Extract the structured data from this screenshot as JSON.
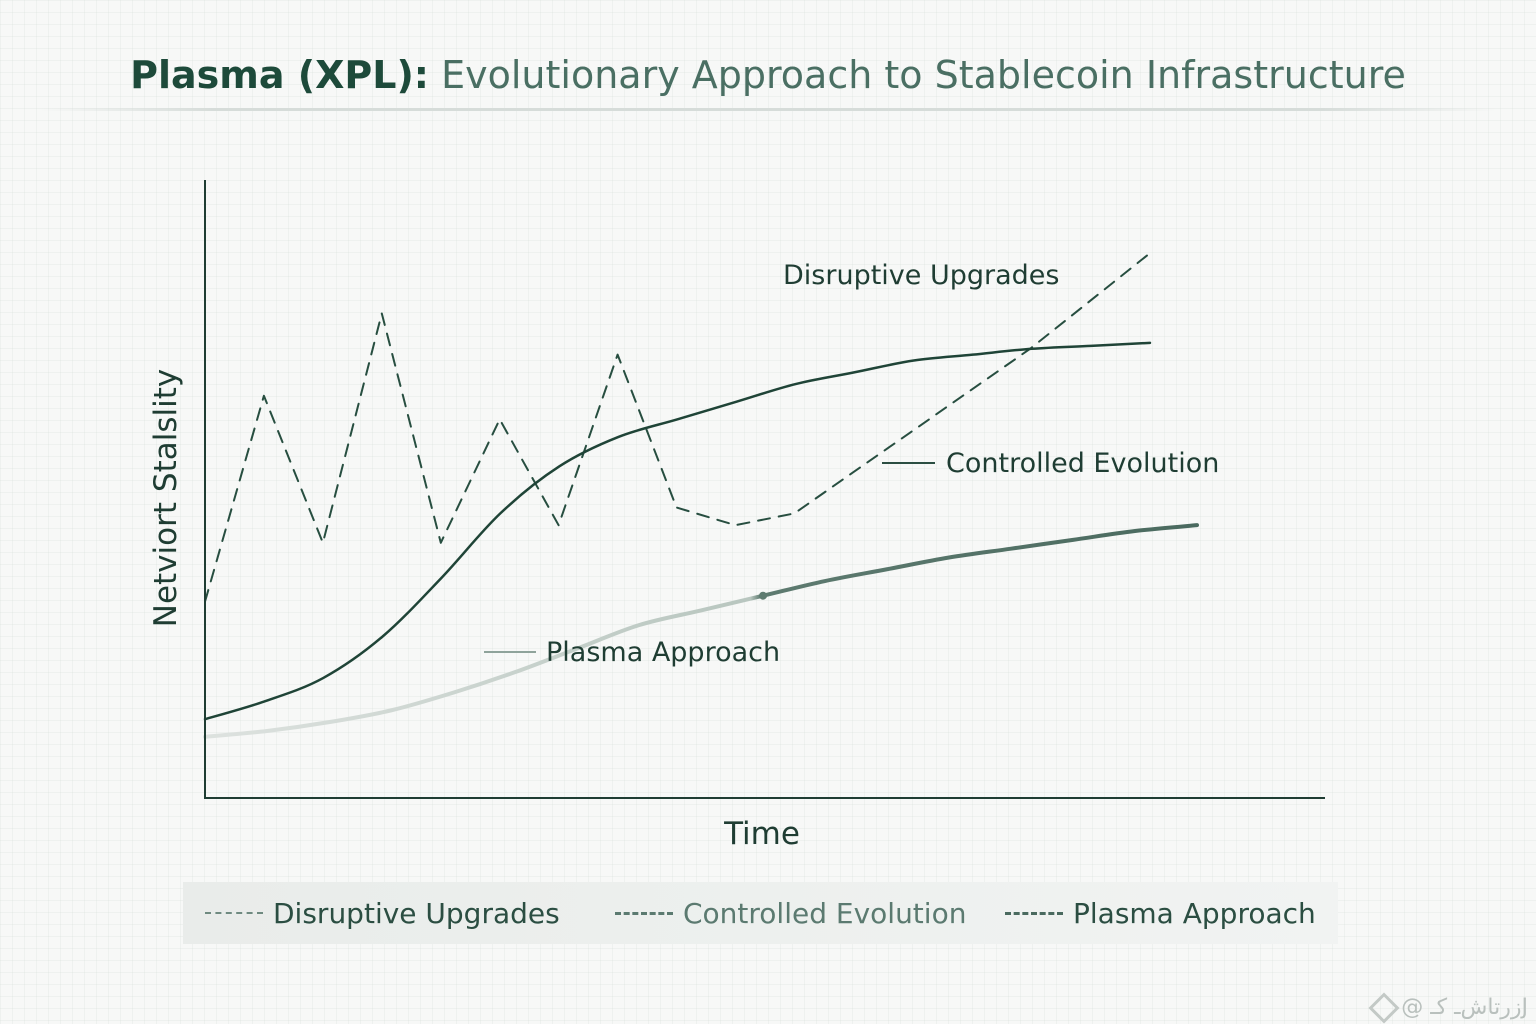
{
  "title": {
    "strong": "Plasma (XPL):",
    "rest": "Evolutionary Approach to Stablecoin Infrastructure"
  },
  "chart_data": {
    "type": "line",
    "xlabel": "Time",
    "ylabel": "Netviort Stalslity",
    "x_ticks": [],
    "y_ticks": [],
    "grid": false,
    "x": [
      0,
      1,
      2,
      3,
      4,
      5,
      6,
      7,
      8,
      9,
      10,
      11,
      12,
      13,
      14,
      15,
      16
    ],
    "series": [
      {
        "name": "Disruptive Upgrades",
        "style": "dashed",
        "color": "#274e40",
        "values": [
          3.0,
          6.5,
          4.0,
          7.9,
          4.0,
          6.1,
          4.3,
          7.2,
          4.6,
          4.3,
          4.5,
          5.2,
          5.9,
          6.6,
          7.3,
          8.1,
          8.9
        ]
      },
      {
        "name": "Controlled Evolution",
        "style": "solid",
        "color": "#1f4437",
        "values": [
          1.0,
          1.3,
          1.7,
          2.4,
          3.4,
          4.5,
          5.3,
          5.8,
          6.1,
          6.4,
          6.7,
          6.9,
          7.1,
          7.2,
          7.3,
          7.35,
          7.4
        ]
      },
      {
        "name": "Plasma Approach",
        "style": "solid-gradient",
        "color": "#4a6a5f",
        "values": [
          0.7,
          0.8,
          0.95,
          1.15,
          1.45,
          1.8,
          2.2,
          2.6,
          2.85,
          3.1,
          3.35,
          3.55,
          3.75,
          3.9,
          4.05,
          4.2,
          4.3
        ]
      }
    ],
    "annotations": [
      {
        "text": "Disruptive Upgrades",
        "series": "Disruptive Upgrades"
      },
      {
        "text": "Controlled Evolution",
        "series": "Controlled Evolution"
      },
      {
        "text": "Plasma Approach",
        "series": "Plasma Approach"
      }
    ],
    "legend": {
      "placement": "bottom",
      "entries": [
        "Disruptive Upgrades",
        "Controlled Evolution",
        "Plasma Approach"
      ]
    }
  },
  "watermark": "@ زرتاش‌ـ کـJ"
}
